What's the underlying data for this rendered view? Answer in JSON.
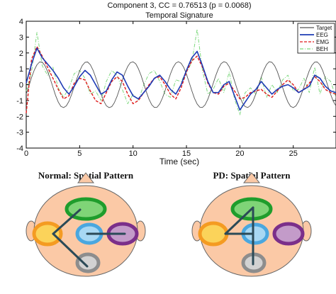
{
  "chart_data": {
    "type": "line",
    "title": "Component 3, CC = 0.76513 (p = 0.0068)",
    "subtitle": "Temporal Signature",
    "xlabel": "Time (sec)",
    "ylabel": "",
    "xlim": [
      0,
      29
    ],
    "ylim": [
      -4,
      4
    ],
    "xticks": [
      0,
      5,
      10,
      15,
      20,
      25
    ],
    "yticks": [
      4,
      3,
      2,
      1,
      0,
      -1,
      -2,
      -3,
      -4
    ],
    "grid": false,
    "legend": "top-right",
    "series": [
      {
        "name": "Target",
        "color": "#555555",
        "style": "solid",
        "x": [
          0,
          0.25,
          0.5,
          0.75,
          1,
          1.25,
          1.5,
          1.75,
          2,
          2.25,
          2.5,
          2.75,
          3,
          3.25,
          3.5,
          3.75,
          4,
          4.25,
          4.5,
          4.75,
          5,
          5.25,
          5.5,
          5.75,
          6,
          6.25,
          6.5,
          6.75,
          7,
          7.25,
          7.5,
          7.75,
          8,
          8.25,
          8.5,
          8.75,
          9,
          9.25,
          9.5,
          9.75,
          10,
          10.25,
          10.5,
          10.75,
          11,
          11.25,
          11.5,
          11.75,
          12,
          12.25,
          12.5,
          12.75,
          13,
          13.25,
          13.5,
          13.75,
          14,
          14.25,
          14.5,
          14.75,
          15,
          15.25,
          15.5,
          15.75,
          16,
          16.25,
          16.5,
          16.75,
          17,
          17.25,
          17.5,
          17.75,
          18,
          18.25,
          18.5,
          18.75,
          19,
          19.25,
          19.5,
          19.75,
          20,
          20.25,
          20.5,
          20.75,
          21,
          21.25,
          21.5,
          21.75,
          22,
          22.25,
          22.5,
          22.75,
          23,
          23.25,
          23.5,
          23.75,
          24,
          24.25,
          24.5,
          24.75,
          25,
          25.25,
          25.5,
          25.75,
          26,
          26.25,
          26.5,
          26.75,
          27,
          27.25,
          27.5,
          27.75,
          28,
          28.25,
          28.5,
          28.75,
          29
        ],
        "values": [
          -0.6,
          -0.08,
          0.45,
          0.91,
          1.25,
          1.43,
          1.42,
          1.2,
          0.84,
          0.37,
          -0.17,
          -0.68,
          -1.1,
          -1.37,
          -1.45,
          -1.34,
          -1.05,
          -0.62,
          -0.11,
          0.4,
          0.86,
          1.21,
          1.41,
          1.43,
          1.26,
          0.92,
          0.47,
          -0.06,
          -0.58,
          -1.02,
          -1.33,
          -1.45,
          -1.39,
          -1.14,
          -0.74,
          -0.24,
          0.28,
          0.77,
          1.15,
          1.39,
          1.44,
          1.32,
          1.01,
          0.58,
          0.06,
          -0.46,
          -0.93,
          -1.27,
          -1.44,
          -1.42,
          -1.21,
          -0.85,
          -0.37,
          0.16,
          0.67,
          1.09,
          1.36,
          1.45,
          1.35,
          1.08,
          0.66,
          0.15,
          -0.38,
          -0.86,
          -1.22,
          -1.42,
          -1.44,
          -1.27,
          -0.92,
          -0.46,
          0.07,
          0.59,
          1.02,
          1.33,
          1.45,
          1.39,
          1.14,
          0.75,
          0.24,
          -0.29,
          -0.77,
          -1.16,
          -1.39,
          -1.44,
          -1.31,
          -1.01,
          -0.57,
          -0.05,
          0.47,
          0.94,
          1.28,
          1.45,
          1.41,
          1.2,
          0.84,
          0.35,
          -0.18,
          -0.68,
          -1.1,
          -1.37,
          -1.45,
          -1.34,
          -1.05,
          -0.63,
          -0.12,
          0.41,
          0.88,
          1.23,
          1.42,
          1.43,
          1.25,
          0.9,
          0.42,
          -0.11,
          -0.62,
          -1.06,
          -1.35
        ]
      },
      {
        "name": "EEG",
        "color": "#1e3bb5",
        "style": "solid",
        "x": [
          0,
          0.5,
          1,
          1.5,
          2,
          2.5,
          3,
          3.5,
          4,
          4.5,
          5,
          5.5,
          6,
          6.5,
          7,
          7.5,
          8,
          8.5,
          9,
          9.5,
          10,
          10.5,
          11,
          11.5,
          12,
          12.5,
          13,
          13.5,
          14,
          14.5,
          15,
          15.5,
          16,
          16.5,
          17,
          17.5,
          18,
          18.5,
          19,
          19.5,
          20,
          20.5,
          21,
          21.5,
          22,
          22.5,
          23,
          23.5,
          24,
          24.5,
          25,
          25.5,
          26,
          26.5,
          27,
          27.5,
          28,
          28.5,
          29
        ],
        "values": [
          0.1,
          1.3,
          2.3,
          1.7,
          1.3,
          0.9,
          0.4,
          -0.2,
          -0.6,
          -0.1,
          0.5,
          0.9,
          0.6,
          0,
          -0.6,
          -0.4,
          0.3,
          0.8,
          0.6,
          -0.1,
          -0.7,
          -0.9,
          -0.5,
          -0.1,
          0.4,
          0.6,
          0.2,
          -0.3,
          -0.6,
          0,
          0.9,
          1.7,
          2.1,
          1.2,
          0.2,
          -0.5,
          -0.5,
          0,
          0.2,
          -0.7,
          -1.6,
          -1.1,
          -0.6,
          -0.3,
          0.2,
          -0.2,
          -0.6,
          -0.3,
          -0.1,
          0,
          -0.2,
          -0.5,
          -0.3,
          -0.1,
          0.6,
          0.4,
          -0.1,
          -0.4,
          -0.5
        ]
      },
      {
        "name": "EMG",
        "color": "#e01b1b",
        "style": "dashed",
        "x": [
          0,
          0.5,
          1,
          1.5,
          2,
          2.5,
          3,
          3.5,
          4,
          4.5,
          5,
          5.5,
          6,
          6.5,
          7,
          7.5,
          8,
          8.5,
          9,
          9.5,
          10,
          10.5,
          11,
          11.5,
          12,
          12.5,
          13,
          13.5,
          14,
          14.5,
          15,
          15.5,
          16,
          16.5,
          17,
          17.5,
          18,
          18.5,
          19,
          19.5,
          20,
          20.5,
          21,
          21.5,
          22,
          22.5,
          23,
          23.5,
          24,
          24.5,
          25,
          25.5,
          26,
          26.5,
          27,
          27.5,
          28,
          28.5,
          29
        ],
        "values": [
          -1.8,
          1.6,
          2.4,
          1.8,
          1.1,
          0.4,
          -0.3,
          -0.9,
          -0.7,
          0.1,
          0.4,
          0.3,
          -0.4,
          -1,
          -1.2,
          -0.5,
          0.2,
          0.5,
          0.2,
          -0.6,
          -1.2,
          -1,
          -0.5,
          0,
          0.4,
          0.5,
          0,
          -0.6,
          -0.9,
          -0.2,
          0.8,
          1.5,
          1.8,
          1.1,
          0.1,
          -0.5,
          -0.6,
          -0.1,
          0.1,
          -0.4,
          -0.9,
          -0.8,
          -0.5,
          -0.4,
          -0.3,
          -0.6,
          -0.8,
          -0.4,
          0,
          0.3,
          0,
          -0.5,
          -0.3,
          0.1,
          0.5,
          0.2,
          -0.3,
          -0.5,
          -0.6
        ]
      },
      {
        "name": "BEH",
        "color": "#7fd97f",
        "style": "dashdot",
        "x": [
          0,
          0.5,
          1,
          1.5,
          2,
          2.5,
          3,
          3.5,
          4,
          4.5,
          5,
          5.5,
          6,
          6.5,
          7,
          7.5,
          8,
          8.5,
          9,
          9.5,
          10,
          10.5,
          11,
          11.5,
          12,
          12.5,
          13,
          13.5,
          14,
          14.5,
          15,
          15.5,
          16,
          16.5,
          17,
          17.5,
          18,
          18.5,
          19,
          19.5,
          20,
          20.5,
          21,
          21.5,
          22,
          22.5,
          23,
          23.5,
          24,
          24.5,
          25,
          25.5,
          26,
          26.5,
          27,
          27.5,
          28,
          28.5,
          29
        ],
        "values": [
          -0.4,
          0.8,
          3.3,
          1.2,
          0.6,
          1.1,
          -0.2,
          -0.8,
          -0.2,
          0.7,
          0.9,
          0.4,
          -0.6,
          -0.4,
          -1,
          0.2,
          0.9,
          0.6,
          -0.3,
          -1.2,
          -0.6,
          -1,
          0,
          0.7,
          0.9,
          0.2,
          -0.6,
          -0.8,
          0.3,
          0.2,
          0.8,
          1.4,
          3.5,
          0.9,
          -0.6,
          -0.3,
          0.4,
          -0.5,
          0.8,
          -0.9,
          -1.9,
          -0.5,
          -0.2,
          -0.6,
          0.5,
          -0.8,
          0,
          -0.5,
          0.3,
          0.6,
          -0.4,
          -0.3,
          0.4,
          -0.5,
          1.1,
          -0.6,
          0.5,
          0.2,
          -0.8
        ]
      }
    ]
  },
  "spatial": {
    "normal_title": "Normal: Spatial Pattern",
    "pd_title": "PD: Spatial Pattern",
    "colors": {
      "head_fill": "#fbc9a6",
      "frontal": "#1f9d2c",
      "frontal_fill": "#7fd477",
      "left": "#f49b22",
      "left_fill": "#fbd35a",
      "center": "#4aa7df",
      "center_fill": "#a8d8f3",
      "right": "#7b2f8a",
      "right_fill": "#c39bc9",
      "occipital": "#8d8d8d",
      "occipital_fill": "#d2d2d2",
      "connection": "#2b4a57"
    }
  }
}
